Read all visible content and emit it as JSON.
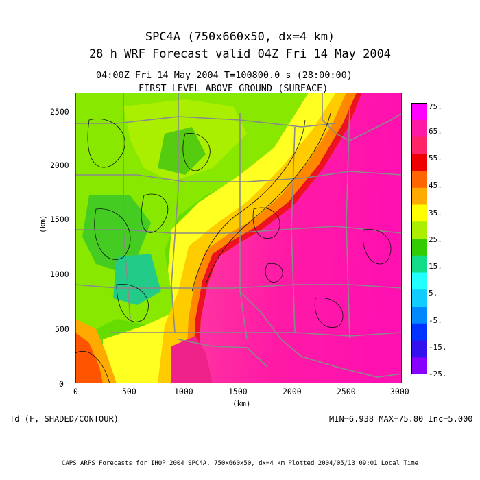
{
  "title": {
    "line1": "SPC4A (750x660x50, dx=4 km)",
    "line2": "28 h WRF Forecast valid 04Z Fri 14 May 2004"
  },
  "subtitle": {
    "time": "04:00Z Fri 14 May 2004     T=100800.0 s (28:00:00)",
    "level": "FIRST LEVEL ABOVE GROUND (SURFACE)"
  },
  "axes": {
    "xlabel": "(km)",
    "ylabel": "(km)",
    "xticks": [
      "0",
      "500",
      "1000",
      "1500",
      "2000",
      "2500",
      "3000"
    ],
    "yticks": [
      "0",
      "500",
      "1000",
      "1500",
      "2000",
      "2500"
    ],
    "xlim": [
      0,
      3000
    ],
    "ylim": [
      0,
      2640
    ]
  },
  "colorbar": {
    "labels": [
      "75.",
      "65.",
      "55.",
      "45.",
      "35.",
      "25.",
      "15.",
      "5.",
      "-5.",
      "-15.",
      "-25."
    ],
    "colors": [
      "#ff00ff",
      "#ff1aa6",
      "#ff2468",
      "#ee0000",
      "#ff6600",
      "#ffaa00",
      "#ffff00",
      "#aaee00",
      "#33cc00",
      "#11dd88",
      "#22ffff",
      "#11ccff",
      "#0088ff",
      "#0033ff",
      "#3311ee",
      "#8800ff"
    ]
  },
  "variable_label": "Td (F, SHADED/CONTOUR)",
  "stats": "MIN=6.938  MAX=75.80  Inc=5.000",
  "footer": "CAPS ARPS Forecasts for IHOP 2004   SPC4A, 750x660x50, dx=4 km   Plotted 2004/05/13  09:01 Local Time",
  "chart_data": {
    "type": "heatmap",
    "field": "Td (F, SHADED/CONTOUR)",
    "units": "F",
    "min": 6.938,
    "max": 75.8,
    "contour_interval": 5.0,
    "colorbar_range": [
      -25,
      75
    ],
    "xlim": [
      0,
      3000
    ],
    "ylim": [
      0,
      2640
    ],
    "xlabel": "(km)",
    "ylabel": "(km)"
  }
}
